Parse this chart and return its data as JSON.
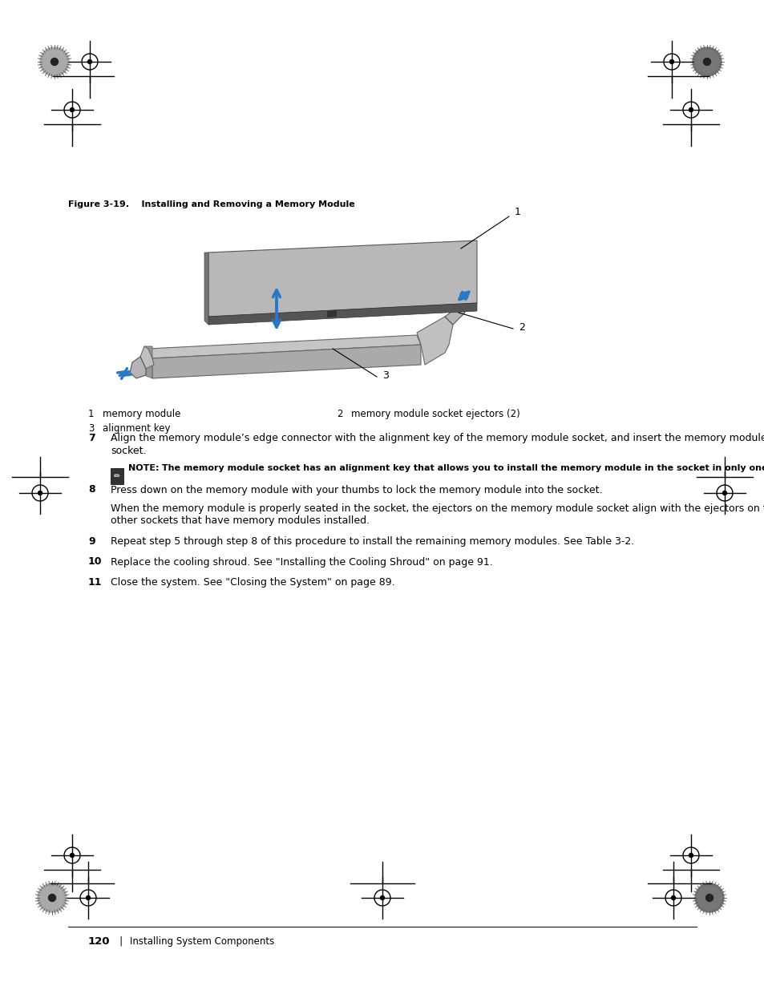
{
  "bg_color": "#ffffff",
  "figure_label": "Figure 3-19.    Installing and Removing a Memory Module",
  "leg1_num": "1",
  "leg1_text": "memory module",
  "leg2_num": "2",
  "leg2_text": "memory module socket ejectors (2)",
  "leg3_num": "3",
  "leg3_text": "alignment key",
  "step7": "Align the memory module’s edge connector with the alignment key of the memory module socket, and insert the memory module in the socket.",
  "note_label": "NOTE:",
  "note_text": " The memory module socket has an alignment key that allows you to install the memory module in the socket in only one way.",
  "step8": "Press down on the memory module with your thumbs to lock the memory module into the socket.",
  "para8": "When the memory module is properly seated in the socket, the ejectors on the memory module socket align with the ejectors on the other sockets that have memory modules installed.",
  "step9": "Repeat step 5 through step 8 of this procedure to install the remaining memory modules. See Table 3-2.",
  "step10": "Replace the cooling shroud. See \"Installing the Cooling Shroud\" on page 91.",
  "step11": "Close the system. See \"Closing the System\" on page 89.",
  "footer_page": "120",
  "footer_sep": "|",
  "footer_text": "Installing System Components",
  "blue": "#2878c8",
  "dark_gray": "#666666",
  "mid_gray": "#aaaaaa",
  "light_gray": "#cccccc",
  "text_color": "#000000"
}
